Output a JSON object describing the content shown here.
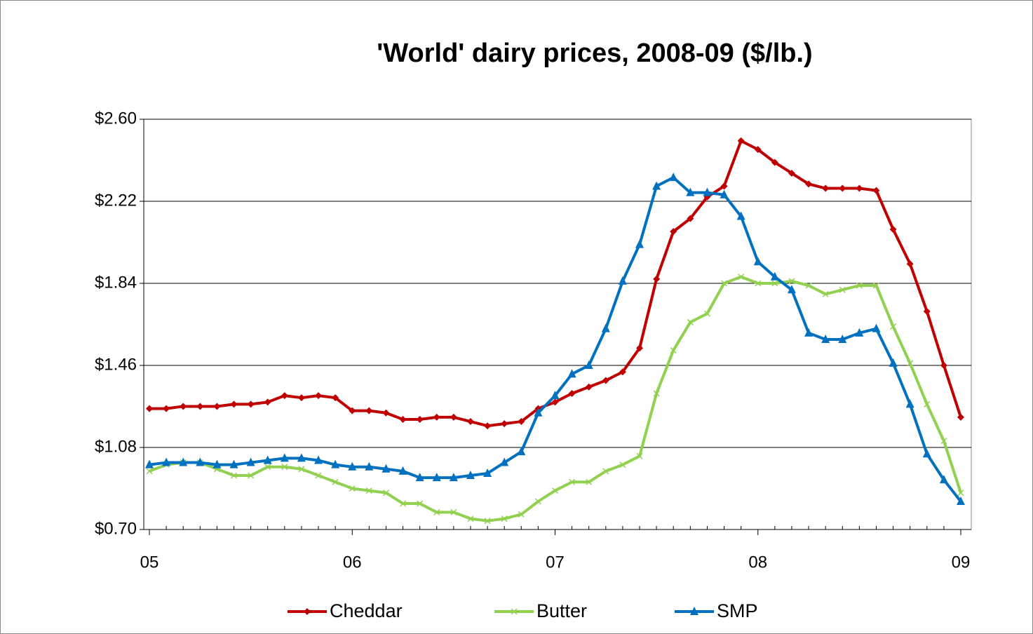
{
  "chart_data": {
    "type": "line",
    "title": "'World' dairy prices, 2008-09 ($/lb.)",
    "categories": [
      "05",
      null,
      null,
      null,
      null,
      null,
      null,
      null,
      null,
      null,
      null,
      null,
      "06",
      null,
      null,
      null,
      null,
      null,
      null,
      null,
      null,
      null,
      null,
      null,
      "07",
      null,
      null,
      null,
      null,
      null,
      null,
      null,
      null,
      null,
      null,
      null,
      "08",
      null,
      null,
      null,
      null,
      null,
      null,
      null,
      null,
      null,
      null,
      null,
      "09"
    ],
    "ylim": [
      0.7,
      2.6
    ],
    "yticks": [
      {
        "value": 0.7,
        "label": "$0.70"
      },
      {
        "value": 1.08,
        "label": "$1.08"
      },
      {
        "value": 1.46,
        "label": "$1.46"
      },
      {
        "value": 1.84,
        "label": "$1.84"
      },
      {
        "value": 2.22,
        "label": "$2.22"
      },
      {
        "value": 2.6,
        "label": "$2.60"
      }
    ],
    "grid": true,
    "legend": "bottom",
    "series": [
      {
        "name": "Cheddar",
        "color": "#c00000",
        "marker": "diamond",
        "values": [
          1.26,
          1.26,
          1.27,
          1.27,
          1.27,
          1.28,
          1.28,
          1.29,
          1.32,
          1.31,
          1.32,
          1.31,
          1.25,
          1.25,
          1.24,
          1.21,
          1.21,
          1.22,
          1.22,
          1.2,
          1.18,
          1.19,
          1.2,
          1.26,
          1.29,
          1.33,
          1.36,
          1.39,
          1.43,
          1.54,
          1.86,
          2.08,
          2.14,
          2.24,
          2.29,
          2.5,
          2.46,
          2.4,
          2.35,
          2.3,
          2.28,
          2.28,
          2.28,
          2.27,
          2.09,
          1.93,
          1.71,
          1.46,
          1.22
        ]
      },
      {
        "name": "Butter",
        "color": "#92d050",
        "marker": "x",
        "values": [
          0.97,
          1.0,
          1.01,
          1.01,
          0.98,
          0.95,
          0.95,
          0.99,
          0.99,
          0.98,
          0.95,
          0.92,
          0.89,
          0.88,
          0.87,
          0.82,
          0.82,
          0.78,
          0.78,
          0.75,
          0.74,
          0.75,
          0.77,
          0.83,
          0.88,
          0.92,
          0.92,
          0.97,
          1.0,
          1.04,
          1.33,
          1.53,
          1.66,
          1.7,
          1.84,
          1.87,
          1.84,
          1.84,
          1.85,
          1.83,
          1.79,
          1.81,
          1.83,
          1.83,
          1.64,
          1.47,
          1.28,
          1.11,
          0.87
        ]
      },
      {
        "name": "SMP",
        "color": "#0070c0",
        "marker": "triangle",
        "values": [
          1.0,
          1.01,
          1.01,
          1.01,
          1.0,
          1.0,
          1.01,
          1.02,
          1.03,
          1.03,
          1.02,
          1.0,
          0.99,
          0.99,
          0.98,
          0.97,
          0.94,
          0.94,
          0.94,
          0.95,
          0.96,
          1.01,
          1.06,
          1.24,
          1.32,
          1.42,
          1.46,
          1.63,
          1.85,
          2.02,
          2.29,
          2.33,
          2.26,
          2.26,
          2.25,
          2.15,
          1.94,
          1.87,
          1.81,
          1.61,
          1.58,
          1.58,
          1.61,
          1.63,
          1.47,
          1.28,
          1.05,
          0.93,
          0.83
        ]
      }
    ]
  }
}
